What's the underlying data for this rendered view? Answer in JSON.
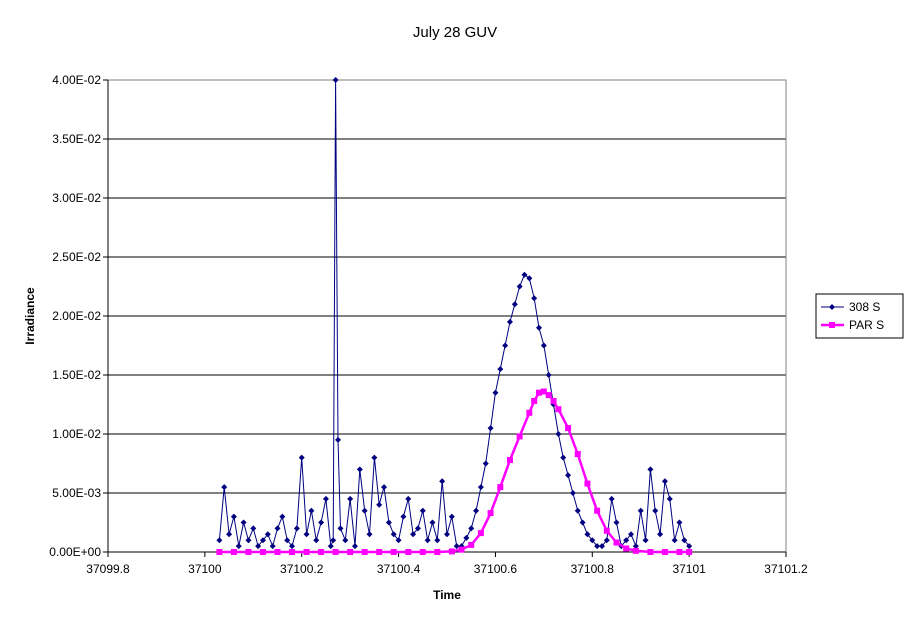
{
  "chart_data": {
    "type": "line",
    "title": "July 28 GUV",
    "xlabel": "Time",
    "ylabel": "Irradiance",
    "xlim": [
      37099.8,
      37101.2
    ],
    "ylim": [
      0,
      0.04
    ],
    "x_ticks": [
      37099.8,
      37100,
      37100.2,
      37100.4,
      37100.6,
      37100.8,
      37101,
      37101.2
    ],
    "x_tick_labels": [
      "37099.8",
      "37100",
      "37100.2",
      "37100.4",
      "37100.6",
      "37100.8",
      "37101",
      "37101.2"
    ],
    "y_ticks": [
      0,
      0.005,
      0.01,
      0.015,
      0.02,
      0.025,
      0.03,
      0.035,
      0.04
    ],
    "y_tick_labels": [
      "0.00E+00",
      "5.00E-03",
      "1.00E-02",
      "1.50E-02",
      "2.00E-02",
      "2.50E-02",
      "3.00E-02",
      "3.50E-02",
      "4.00E-02"
    ],
    "grid": "horizontal",
    "legend_position": "right",
    "series": [
      {
        "name": "308 S",
        "color": "#000080",
        "marker": "diamond",
        "x": [
          37100.03,
          37100.04,
          37100.05,
          37100.06,
          37100.07,
          37100.08,
          37100.09,
          37100.1,
          37100.11,
          37100.12,
          37100.13,
          37100.14,
          37100.15,
          37100.16,
          37100.17,
          37100.18,
          37100.19,
          37100.2,
          37100.21,
          37100.22,
          37100.23,
          37100.24,
          37100.25,
          37100.26,
          37100.265,
          37100.27,
          37100.275,
          37100.28,
          37100.29,
          37100.3,
          37100.31,
          37100.32,
          37100.33,
          37100.34,
          37100.35,
          37100.36,
          37100.37,
          37100.38,
          37100.39,
          37100.4,
          37100.41,
          37100.42,
          37100.43,
          37100.44,
          37100.45,
          37100.46,
          37100.47,
          37100.48,
          37100.49,
          37100.5,
          37100.51,
          37100.52,
          37100.53,
          37100.54,
          37100.55,
          37100.56,
          37100.57,
          37100.58,
          37100.59,
          37100.6,
          37100.61,
          37100.62,
          37100.63,
          37100.64,
          37100.65,
          37100.66,
          37100.67,
          37100.68,
          37100.69,
          37100.7,
          37100.71,
          37100.72,
          37100.73,
          37100.74,
          37100.75,
          37100.76,
          37100.77,
          37100.78,
          37100.79,
          37100.8,
          37100.81,
          37100.82,
          37100.83,
          37100.84,
          37100.85,
          37100.86,
          37100.87,
          37100.88,
          37100.89,
          37100.9,
          37100.91,
          37100.92,
          37100.93,
          37100.94,
          37100.95,
          37100.96,
          37100.97,
          37100.98,
          37100.99,
          37101.0
        ],
        "y": [
          0.001,
          0.0055,
          0.0015,
          0.003,
          0.0005,
          0.0025,
          0.001,
          0.002,
          0.0005,
          0.001,
          0.0015,
          0.0005,
          0.002,
          0.003,
          0.001,
          0.0005,
          0.002,
          0.008,
          0.0015,
          0.0035,
          0.001,
          0.0025,
          0.0045,
          0.0005,
          0.001,
          0.04,
          0.0095,
          0.002,
          0.001,
          0.0045,
          0.0005,
          0.007,
          0.0035,
          0.0015,
          0.008,
          0.004,
          0.0055,
          0.0025,
          0.0015,
          0.001,
          0.003,
          0.0045,
          0.0015,
          0.002,
          0.0035,
          0.001,
          0.0025,
          0.001,
          0.006,
          0.0015,
          0.003,
          0.0005,
          0.0005,
          0.0012,
          0.002,
          0.0035,
          0.0055,
          0.0075,
          0.0105,
          0.0135,
          0.0155,
          0.0175,
          0.0195,
          0.021,
          0.0225,
          0.0235,
          0.0232,
          0.0215,
          0.019,
          0.0175,
          0.015,
          0.0125,
          0.01,
          0.008,
          0.0065,
          0.005,
          0.0035,
          0.0025,
          0.0015,
          0.001,
          0.0005,
          0.0005,
          0.001,
          0.0045,
          0.0025,
          0.0005,
          0.001,
          0.0015,
          0.0005,
          0.0035,
          0.001,
          0.007,
          0.0035,
          0.0015,
          0.006,
          0.0045,
          0.001,
          0.0025,
          0.001,
          0.0005
        ]
      },
      {
        "name": "PAR S",
        "color": "#FF00FF",
        "marker": "square",
        "x": [
          37100.03,
          37100.06,
          37100.09,
          37100.12,
          37100.15,
          37100.18,
          37100.21,
          37100.24,
          37100.27,
          37100.3,
          37100.33,
          37100.36,
          37100.39,
          37100.42,
          37100.45,
          37100.48,
          37100.51,
          37100.53,
          37100.55,
          37100.57,
          37100.59,
          37100.61,
          37100.63,
          37100.65,
          37100.67,
          37100.68,
          37100.69,
          37100.7,
          37100.71,
          37100.72,
          37100.73,
          37100.75,
          37100.77,
          37100.79,
          37100.81,
          37100.83,
          37100.85,
          37100.87,
          37100.89,
          37100.92,
          37100.95,
          37100.98,
          37101.0
        ],
        "y": [
          0,
          0,
          0,
          0,
          0,
          0,
          0,
          0,
          0,
          0,
          0,
          0,
          0,
          0,
          0,
          0,
          5e-05,
          0.0002,
          0.0006,
          0.0016,
          0.0033,
          0.0055,
          0.0078,
          0.0098,
          0.0118,
          0.0128,
          0.0135,
          0.0136,
          0.0133,
          0.0128,
          0.0121,
          0.0105,
          0.0083,
          0.0058,
          0.0035,
          0.0018,
          0.0008,
          0.0003,
          0.0001,
          0,
          0,
          0,
          0
        ]
      }
    ]
  }
}
